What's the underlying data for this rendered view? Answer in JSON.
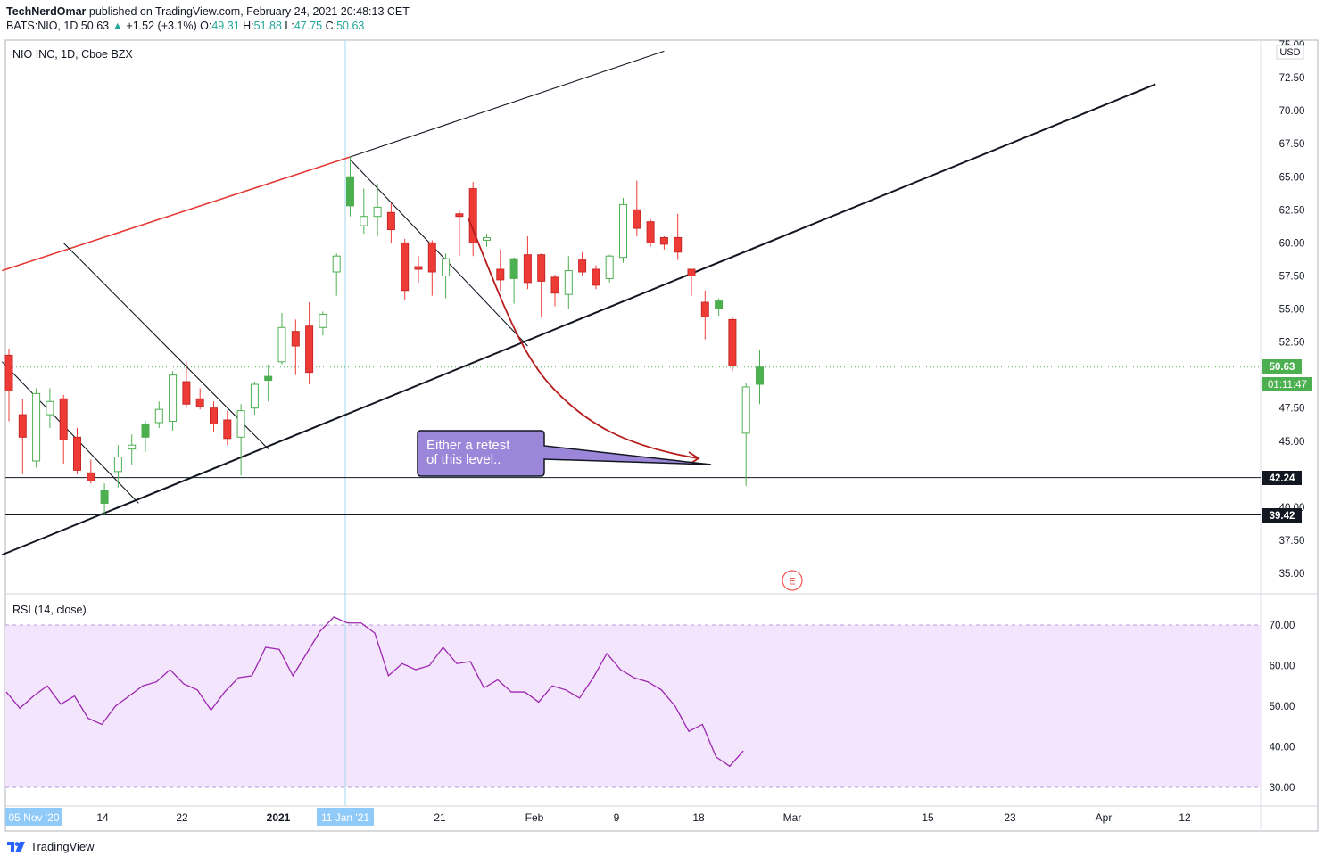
{
  "header": {
    "author": "TechNerdOmar",
    "published_text": "published on TradingView.com, February 24, 2021 20:48:13 CET",
    "symbol_line": "BATS:NIO, 1D",
    "last": "50.63",
    "change_arrow": "▲",
    "change": "+1.52 (+3.1%)",
    "o_label": "O:",
    "o": "49.31",
    "h_label": "H:",
    "h": "51.88",
    "l_label": "L:",
    "l": "47.75",
    "c_label": "C:",
    "c": "50.63"
  },
  "chart_title": "NIO INC, 1D, Cboe BZX",
  "currency": "USD",
  "rsi_label": "RSI (14, close)",
  "earnings_marker": "E",
  "annotation": {
    "line1": "Either a retest",
    "line2": "of this level.."
  },
  "price_tags": {
    "last": "50.63",
    "countdown": "01:11:47",
    "level1": "42.24",
    "level2": "39.42"
  },
  "colors": {
    "up": "#4caf50",
    "down": "#ef3b35",
    "rsi": "#9c27b0",
    "rsi_band": "#f3e5fb",
    "accent": "#2962ff"
  },
  "footer": {
    "brand": "TradingView",
    "logo_icon": "tradingview-logo-icon"
  },
  "chart_data": {
    "type": "candlestick",
    "title": "NIO INC, 1D, Cboe BZX",
    "y_range": [
      33.5,
      75.5
    ],
    "y_ticks": [
      "75.00",
      "72.50",
      "70.00",
      "67.50",
      "65.00",
      "62.50",
      "60.00",
      "57.50",
      "55.00",
      "52.50",
      "47.50",
      "45.00",
      "40.00",
      "37.50",
      "35.00"
    ],
    "x_ticks": [
      "05 Nov '20",
      "14",
      "22",
      "2021",
      "12",
      "21",
      "Feb",
      "9",
      "18",
      "Mar",
      "15",
      "23",
      "Apr",
      "12"
    ],
    "crosshair_x_label": "11 Jan '21",
    "horizontal_levels": [
      42.24,
      39.42
    ],
    "candles": [
      {
        "o": 51.5,
        "h": 52.0,
        "l": 46.5,
        "c": 48.8
      },
      {
        "o": 47.0,
        "h": 48.2,
        "l": 42.5,
        "c": 45.3
      },
      {
        "o": 43.5,
        "h": 49.0,
        "l": 43.0,
        "c": 48.6
      },
      {
        "o": 47.0,
        "h": 49.0,
        "l": 46.0,
        "c": 48.0
      },
      {
        "o": 48.2,
        "h": 48.5,
        "l": 43.3,
        "c": 45.1
      },
      {
        "o": 45.3,
        "h": 46.0,
        "l": 42.5,
        "c": 42.8
      },
      {
        "o": 42.6,
        "h": 43.6,
        "l": 41.8,
        "c": 42.0
      },
      {
        "o": 40.3,
        "h": 41.8,
        "l": 39.4,
        "c": 41.3
      },
      {
        "o": 42.7,
        "h": 44.7,
        "l": 41.5,
        "c": 43.8
      },
      {
        "o": 44.4,
        "h": 45.5,
        "l": 43.2,
        "c": 44.7
      },
      {
        "o": 45.3,
        "h": 46.5,
        "l": 44.2,
        "c": 46.3
      },
      {
        "o": 46.4,
        "h": 48.0,
        "l": 46.0,
        "c": 47.4
      },
      {
        "o": 46.5,
        "h": 50.3,
        "l": 45.8,
        "c": 50.0
      },
      {
        "o": 49.5,
        "h": 51.0,
        "l": 47.5,
        "c": 47.8
      },
      {
        "o": 48.2,
        "h": 49.0,
        "l": 47.4,
        "c": 47.6
      },
      {
        "o": 47.5,
        "h": 48.0,
        "l": 45.7,
        "c": 46.3
      },
      {
        "o": 46.6,
        "h": 47.3,
        "l": 44.7,
        "c": 45.2
      },
      {
        "o": 45.3,
        "h": 47.8,
        "l": 42.4,
        "c": 47.3
      },
      {
        "o": 47.5,
        "h": 49.5,
        "l": 47.0,
        "c": 49.3
      },
      {
        "o": 49.6,
        "h": 50.8,
        "l": 48.0,
        "c": 49.9
      },
      {
        "o": 51.0,
        "h": 54.7,
        "l": 50.8,
        "c": 53.6
      },
      {
        "o": 53.3,
        "h": 54.2,
        "l": 50.0,
        "c": 52.2
      },
      {
        "o": 53.7,
        "h": 55.5,
        "l": 49.3,
        "c": 50.2
      },
      {
        "o": 53.6,
        "h": 54.8,
        "l": 53.0,
        "c": 54.6
      },
      {
        "o": 57.8,
        "h": 59.2,
        "l": 56.0,
        "c": 59.0
      },
      {
        "o": 62.8,
        "h": 66.5,
        "l": 62.0,
        "c": 65.0
      },
      {
        "o": 61.3,
        "h": 64.1,
        "l": 60.7,
        "c": 62.0
      },
      {
        "o": 62.0,
        "h": 64.5,
        "l": 60.5,
        "c": 62.7
      },
      {
        "o": 62.3,
        "h": 63.0,
        "l": 60.0,
        "c": 61.0
      },
      {
        "o": 60.0,
        "h": 60.3,
        "l": 55.7,
        "c": 56.4
      },
      {
        "o": 58.2,
        "h": 59.0,
        "l": 57.0,
        "c": 58.0
      },
      {
        "o": 60.0,
        "h": 60.2,
        "l": 56.0,
        "c": 57.8
      },
      {
        "o": 57.5,
        "h": 59.2,
        "l": 55.8,
        "c": 58.8
      },
      {
        "o": 62.2,
        "h": 62.5,
        "l": 59.0,
        "c": 62.0
      },
      {
        "o": 64.1,
        "h": 64.6,
        "l": 59.0,
        "c": 60.0
      },
      {
        "o": 60.2,
        "h": 60.7,
        "l": 59.7,
        "c": 60.4
      },
      {
        "o": 58.0,
        "h": 59.5,
        "l": 56.4,
        "c": 57.2
      },
      {
        "o": 57.3,
        "h": 58.9,
        "l": 55.4,
        "c": 58.8
      },
      {
        "o": 59.1,
        "h": 60.5,
        "l": 56.5,
        "c": 57.0
      },
      {
        "o": 59.1,
        "h": 59.2,
        "l": 54.4,
        "c": 57.1
      },
      {
        "o": 57.4,
        "h": 57.6,
        "l": 55.2,
        "c": 56.2
      },
      {
        "o": 56.1,
        "h": 59.0,
        "l": 55.0,
        "c": 57.9
      },
      {
        "o": 58.7,
        "h": 59.3,
        "l": 57.5,
        "c": 57.8
      },
      {
        "o": 58.0,
        "h": 58.3,
        "l": 56.5,
        "c": 56.8
      },
      {
        "o": 57.3,
        "h": 59.1,
        "l": 57.0,
        "c": 59.0
      },
      {
        "o": 58.9,
        "h": 63.4,
        "l": 58.5,
        "c": 62.9
      },
      {
        "o": 62.5,
        "h": 64.7,
        "l": 60.5,
        "c": 61.1
      },
      {
        "o": 61.6,
        "h": 61.8,
        "l": 59.7,
        "c": 60.0
      },
      {
        "o": 60.4,
        "h": 60.5,
        "l": 59.5,
        "c": 59.9
      },
      {
        "o": 60.4,
        "h": 62.2,
        "l": 58.7,
        "c": 59.3
      },
      {
        "o": 58.0,
        "h": 58.0,
        "l": 56.0,
        "c": 57.5
      },
      {
        "o": 55.5,
        "h": 56.4,
        "l": 52.7,
        "c": 54.4
      },
      {
        "o": 55.0,
        "h": 55.8,
        "l": 54.5,
        "c": 55.6
      },
      {
        "o": 54.2,
        "h": 54.4,
        "l": 50.3,
        "c": 50.7
      },
      {
        "o": 45.6,
        "h": 49.4,
        "l": 41.6,
        "c": 49.1
      },
      {
        "o": 49.3,
        "h": 51.9,
        "l": 47.8,
        "c": 50.6
      }
    ],
    "trendlines": [
      {
        "color": "#e53935",
        "from": {
          "bar": -0.5,
          "price": 57.9
        },
        "to": {
          "bar": 25,
          "price": 66.5
        }
      },
      {
        "color": "#131722",
        "from": {
          "bar": 25,
          "price": 66.5
        },
        "to": {
          "bar": 48,
          "price": 74.5
        }
      },
      {
        "color": "#131722",
        "from": {
          "bar": -0.5,
          "price": 36.4
        },
        "to": {
          "bar": 84,
          "price": 72.0
        }
      },
      {
        "color": "#131722",
        "from": {
          "bar": -0.5,
          "price": 51.0
        },
        "to": {
          "bar": 9.5,
          "price": 40.3
        }
      },
      {
        "color": "#131722",
        "from": {
          "bar": 4,
          "price": 60.0
        },
        "to": {
          "bar": 19,
          "price": 44.4
        }
      },
      {
        "color": "#131722",
        "from": {
          "bar": 25,
          "price": 66.3
        },
        "to": {
          "bar": 38,
          "price": 52.2
        }
      }
    ],
    "rsi": {
      "label": "RSI (14, close)",
      "y_ticks": [
        "70.00",
        "60.00",
        "50.00",
        "40.00",
        "30.00"
      ],
      "range": [
        26,
        76
      ],
      "band": [
        30,
        70
      ],
      "values": [
        53.5,
        49.5,
        52.5,
        55.0,
        50.5,
        52.5,
        47.0,
        45.5,
        50.0,
        52.5,
        55.0,
        56.0,
        59.0,
        55.5,
        54.0,
        49.0,
        53.5,
        57.0,
        57.5,
        64.5,
        64.0,
        57.5,
        63.0,
        68.5,
        72.0,
        70.5,
        70.5,
        68.0,
        57.5,
        60.5,
        59.0,
        60.0,
        64.5,
        60.5,
        61.0,
        54.5,
        56.5,
        53.5,
        53.5,
        51.0,
        55.0,
        54.0,
        52.0,
        57.0,
        63.0,
        59.0,
        57.0,
        56.0,
        54.0,
        50.0,
        43.8,
        45.5,
        37.5,
        35.2,
        39.0
      ]
    }
  }
}
